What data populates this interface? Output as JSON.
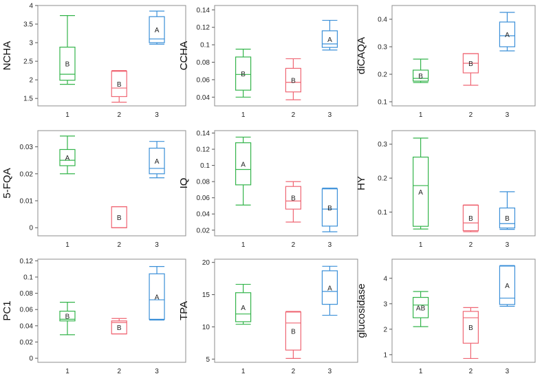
{
  "chart_data": [
    {
      "type": "box",
      "ylabel": "NCHA",
      "categories": [
        "1",
        "2",
        "3"
      ],
      "yticks": [
        "1.5",
        "2",
        "2.5",
        "3",
        "3.5",
        "4"
      ],
      "ylim": [
        1.3,
        4.0
      ],
      "boxes": [
        {
          "min": 1.88,
          "q1": 1.99,
          "median": 2.15,
          "q3": 2.88,
          "max": 3.73,
          "color": "#33b44a",
          "letter": "B"
        },
        {
          "min": 1.4,
          "q1": 1.55,
          "median": 1.78,
          "q3": 2.23,
          "max": 2.25,
          "color": "#ef6673",
          "letter": "B"
        },
        {
          "min": 2.96,
          "q1": 3.0,
          "median": 3.1,
          "q3": 3.7,
          "max": 3.85,
          "color": "#3a8fd8",
          "letter": "A"
        }
      ]
    },
    {
      "type": "box",
      "ylabel": "CCHA",
      "categories": [
        "1",
        "2",
        "3"
      ],
      "yticks": [
        "0.04",
        "0.06",
        "0.08",
        "0.1",
        "0.12",
        "0.14"
      ],
      "ylim": [
        0.03,
        0.145
      ],
      "boxes": [
        {
          "min": 0.04,
          "q1": 0.048,
          "median": 0.066,
          "q3": 0.086,
          "max": 0.095,
          "color": "#33b44a",
          "letter": "B"
        },
        {
          "min": 0.037,
          "q1": 0.046,
          "median": 0.057,
          "q3": 0.073,
          "max": 0.084,
          "color": "#ef6673",
          "letter": "B"
        },
        {
          "min": 0.094,
          "q1": 0.097,
          "median": 0.101,
          "q3": 0.116,
          "max": 0.128,
          "color": "#3a8fd8",
          "letter": "A"
        }
      ]
    },
    {
      "type": "box",
      "ylabel": "diCAQA",
      "categories": [
        "1",
        "2",
        "3"
      ],
      "yticks": [
        "0.1",
        "0.2",
        "0.3",
        "0.4"
      ],
      "ylim": [
        0.085,
        0.45
      ],
      "boxes": [
        {
          "min": 0.17,
          "q1": 0.175,
          "median": 0.185,
          "q3": 0.215,
          "max": 0.255,
          "color": "#33b44a",
          "letter": "B"
        },
        {
          "min": 0.16,
          "q1": 0.205,
          "median": 0.24,
          "q3": 0.275,
          "max": 0.275,
          "color": "#ef6673",
          "letter": "B"
        },
        {
          "min": 0.285,
          "q1": 0.3,
          "median": 0.34,
          "q3": 0.39,
          "max": 0.425,
          "color": "#3a8fd8",
          "letter": "A"
        }
      ]
    },
    {
      "type": "box",
      "ylabel": "5-FQA",
      "categories": [
        "1",
        "2",
        "3"
      ],
      "yticks": [
        "0",
        "0.01",
        "0.02",
        "0.03"
      ],
      "ylim": [
        -0.003,
        0.036
      ],
      "boxes": [
        {
          "min": 0.02,
          "q1": 0.023,
          "median": 0.025,
          "q3": 0.029,
          "max": 0.034,
          "color": "#33b44a",
          "letter": "A"
        },
        {
          "min": 0.0,
          "q1": 0.0,
          "median": 0.0,
          "q3": 0.0078,
          "max": 0.0078,
          "color": "#ef6673",
          "letter": "B"
        },
        {
          "min": 0.0185,
          "q1": 0.02,
          "median": 0.022,
          "q3": 0.0295,
          "max": 0.032,
          "color": "#3a8fd8",
          "letter": "A"
        }
      ]
    },
    {
      "type": "box",
      "ylabel": "IQ",
      "categories": [
        "1",
        "2",
        "3"
      ],
      "yticks": [
        "0.02",
        "0.04",
        "0.06",
        "0.08",
        "0.1",
        "0.12",
        "0.14"
      ],
      "ylim": [
        0.013,
        0.143
      ],
      "boxes": [
        {
          "min": 0.051,
          "q1": 0.076,
          "median": 0.095,
          "q3": 0.128,
          "max": 0.135,
          "color": "#33b44a",
          "letter": "A"
        },
        {
          "min": 0.03,
          "q1": 0.046,
          "median": 0.056,
          "q3": 0.074,
          "max": 0.08,
          "color": "#ef6673",
          "letter": "B"
        },
        {
          "min": 0.018,
          "q1": 0.025,
          "median": 0.046,
          "q3": 0.071,
          "max": 0.072,
          "color": "#3a8fd8",
          "letter": "B"
        }
      ]
    },
    {
      "type": "box",
      "ylabel": "HY",
      "categories": [
        "1",
        "2",
        "3"
      ],
      "yticks": [
        "0.1",
        "0.2",
        "0.3"
      ],
      "ylim": [
        0.03,
        0.34
      ],
      "boxes": [
        {
          "min": 0.05,
          "q1": 0.058,
          "median": 0.178,
          "q3": 0.262,
          "max": 0.318,
          "color": "#33b44a",
          "letter": "A"
        },
        {
          "min": 0.042,
          "q1": 0.045,
          "median": 0.068,
          "q3": 0.12,
          "max": 0.121,
          "color": "#ef6673",
          "letter": "B"
        },
        {
          "min": 0.049,
          "q1": 0.053,
          "median": 0.066,
          "q3": 0.112,
          "max": 0.16,
          "color": "#3a8fd8",
          "letter": "B"
        }
      ]
    },
    {
      "type": "box",
      "ylabel": "PC1",
      "categories": [
        "1",
        "2",
        "3"
      ],
      "yticks": [
        "0",
        "0.02",
        "0.04",
        "0.06",
        "0.08",
        "0.1",
        "0.12"
      ],
      "ylim": [
        -0.005,
        0.122
      ],
      "boxes": [
        {
          "min": 0.029,
          "q1": 0.046,
          "median": 0.048,
          "q3": 0.058,
          "max": 0.069,
          "color": "#33b44a",
          "letter": "B"
        },
        {
          "min": 0.03,
          "q1": 0.03,
          "median": 0.044,
          "q3": 0.046,
          "max": 0.049,
          "color": "#ef6673",
          "letter": "B"
        },
        {
          "min": 0.047,
          "q1": 0.048,
          "median": 0.072,
          "q3": 0.104,
          "max": 0.113,
          "color": "#3a8fd8",
          "letter": "A"
        }
      ]
    },
    {
      "type": "box",
      "ylabel": "TPA",
      "categories": [
        "1",
        "2",
        "3"
      ],
      "yticks": [
        "5",
        "10",
        "15",
        "20"
      ],
      "ylim": [
        4.5,
        20.5
      ],
      "boxes": [
        {
          "min": 10.4,
          "q1": 10.8,
          "median": 12.0,
          "q3": 15.3,
          "max": 16.6,
          "color": "#33b44a",
          "letter": "A"
        },
        {
          "min": 5.1,
          "q1": 6.4,
          "median": 10.6,
          "q3": 12.3,
          "max": 12.4,
          "color": "#ef6673",
          "letter": "B"
        },
        {
          "min": 11.8,
          "q1": 13.5,
          "median": 15.5,
          "q3": 18.7,
          "max": 19.4,
          "color": "#3a8fd8",
          "letter": "A"
        }
      ]
    },
    {
      "type": "box",
      "ylabel": "glucosidase",
      "categories": [
        "1",
        "2",
        "3"
      ],
      "yticks": [
        "1",
        "2",
        "3",
        "4"
      ],
      "ylim": [
        0.7,
        4.75
      ],
      "boxes": [
        {
          "min": 2.1,
          "q1": 2.45,
          "median": 2.95,
          "q3": 3.25,
          "max": 3.48,
          "color": "#33b44a",
          "letter": "AB"
        },
        {
          "min": 0.85,
          "q1": 1.45,
          "median": 2.45,
          "q3": 2.7,
          "max": 2.85,
          "color": "#ef6673",
          "letter": "B"
        },
        {
          "min": 2.9,
          "q1": 2.97,
          "median": 3.22,
          "q3": 4.48,
          "max": 4.5,
          "color": "#3a8fd8",
          "letter": "A"
        }
      ]
    }
  ]
}
